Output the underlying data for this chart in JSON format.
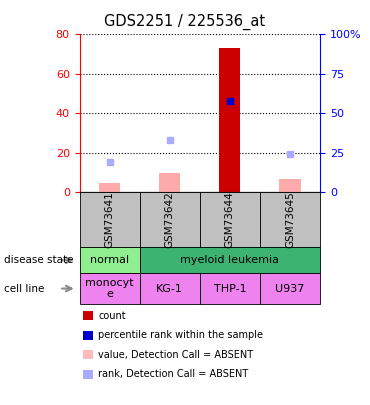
{
  "title": "GDS2251 / 225536_at",
  "samples": [
    "GSM73641",
    "GSM73642",
    "GSM73644",
    "GSM73645"
  ],
  "count_values": [
    5,
    10,
    73,
    7
  ],
  "count_colors": [
    "#ffaaaa",
    "#ffaaaa",
    "#cc0000",
    "#ffaaaa"
  ],
  "percentile_rank": [
    null,
    null,
    58,
    null
  ],
  "value_absent": [
    5,
    10,
    null,
    7
  ],
  "rank_absent": [
    19,
    33,
    null,
    24
  ],
  "ylim_left": [
    0,
    80
  ],
  "ylim_right": [
    0,
    100
  ],
  "yticks_left": [
    0,
    20,
    40,
    60,
    80
  ],
  "yticks_right": [
    0,
    25,
    50,
    75,
    100
  ],
  "ytick_labels_left": [
    "0",
    "20",
    "40",
    "60",
    "80"
  ],
  "ytick_labels_right": [
    "0",
    "25",
    "50",
    "75",
    "100%"
  ],
  "color_normal": "#90EE90",
  "color_myeloid": "#3CB371",
  "color_monocyte": "#EE82EE",
  "color_kgleuk": "#EE82EE",
  "color_sample_header": "#C0C0C0",
  "bar_width": 0.35,
  "legend_labels": [
    "count",
    "percentile rank within the sample",
    "value, Detection Call = ABSENT",
    "rank, Detection Call = ABSENT"
  ],
  "legend_colors": [
    "#cc0000",
    "#0000cc",
    "#ffbbbb",
    "#aaaaff"
  ]
}
